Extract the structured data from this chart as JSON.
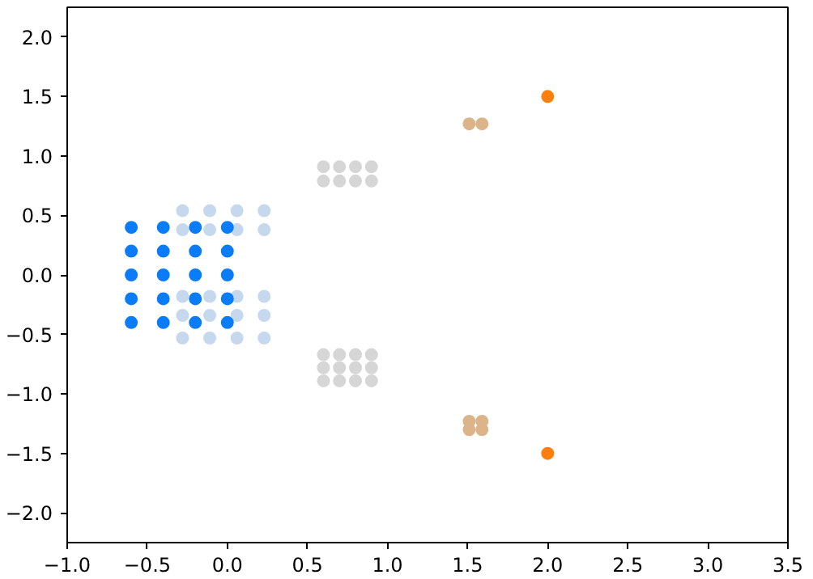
{
  "chart_data": {
    "type": "scatter",
    "xlim": [
      -1.0,
      3.5
    ],
    "ylim": [
      -2.25,
      2.25
    ],
    "xticks": [
      {
        "value": -1.0,
        "label": "−1.0"
      },
      {
        "value": -0.5,
        "label": "−0.5"
      },
      {
        "value": 0.0,
        "label": "0.0"
      },
      {
        "value": 0.5,
        "label": "0.5"
      },
      {
        "value": 1.0,
        "label": "1.0"
      },
      {
        "value": 1.5,
        "label": "1.5"
      },
      {
        "value": 2.0,
        "label": "2.0"
      },
      {
        "value": 2.5,
        "label": "2.5"
      },
      {
        "value": 3.0,
        "label": "3.0"
      },
      {
        "value": 3.5,
        "label": "3.5"
      }
    ],
    "yticks": [
      {
        "value": -2.0,
        "label": "−2.0"
      },
      {
        "value": -1.5,
        "label": "−1.5"
      },
      {
        "value": -1.0,
        "label": "−1.0"
      },
      {
        "value": -0.5,
        "label": "−0.5"
      },
      {
        "value": 0.0,
        "label": "0.0"
      },
      {
        "value": 0.5,
        "label": "0.5"
      },
      {
        "value": 1.0,
        "label": "1.0"
      },
      {
        "value": 1.5,
        "label": "1.5"
      },
      {
        "value": 2.0,
        "label": "2.0"
      }
    ],
    "grid": false,
    "marker": "circle",
    "series": [
      {
        "color": "#c6d8ee",
        "x": [
          -0.28,
          -0.11,
          0.06,
          0.23,
          -0.28,
          -0.11,
          0.06,
          0.23,
          -0.28,
          -0.11,
          0.06,
          0.23,
          -0.28,
          -0.11,
          0.06,
          0.23,
          -0.28,
          -0.11,
          0.06,
          0.23
        ],
        "values": [
          0.54,
          0.54,
          0.54,
          0.54,
          0.38,
          0.38,
          0.38,
          0.38,
          -0.18,
          -0.18,
          -0.18,
          -0.18,
          -0.34,
          -0.34,
          -0.34,
          -0.34,
          -0.53,
          -0.53,
          -0.53,
          -0.53
        ]
      },
      {
        "color": "#0a7cf7",
        "x": [
          -0.6,
          -0.4,
          -0.2,
          0.0,
          -0.6,
          -0.4,
          -0.2,
          0.0,
          -0.6,
          -0.4,
          -0.2,
          0.0,
          -0.6,
          -0.4,
          -0.2,
          0.0,
          -0.6,
          -0.4,
          -0.2,
          0.0
        ],
        "values": [
          0.4,
          0.4,
          0.4,
          0.4,
          0.2,
          0.2,
          0.2,
          0.2,
          0.0,
          0.0,
          0.0,
          0.0,
          -0.2,
          -0.2,
          -0.2,
          -0.2,
          -0.4,
          -0.4,
          -0.4,
          -0.4
        ]
      },
      {
        "color": "#d6d6d6",
        "x": [
          0.6,
          0.7,
          0.8,
          0.9,
          0.6,
          0.7,
          0.8,
          0.9,
          0.6,
          0.7,
          0.8,
          0.9,
          0.6,
          0.7,
          0.8,
          0.9,
          0.6,
          0.7,
          0.8,
          0.9
        ],
        "values": [
          0.91,
          0.91,
          0.91,
          0.91,
          0.79,
          0.79,
          0.79,
          0.79,
          -0.67,
          -0.67,
          -0.67,
          -0.67,
          -0.78,
          -0.78,
          -0.78,
          -0.78,
          -0.89,
          -0.89,
          -0.89,
          -0.89
        ]
      },
      {
        "color": "#dcb48a",
        "x": [
          1.51,
          1.59,
          1.51,
          1.59,
          1.51,
          1.59
        ],
        "values": [
          1.27,
          1.27,
          -1.23,
          -1.23,
          -1.3,
          -1.3
        ]
      },
      {
        "color": "#ff7f0e",
        "x": [
          2.0,
          2.0
        ],
        "values": [
          1.5,
          -1.5
        ]
      }
    ]
  }
}
